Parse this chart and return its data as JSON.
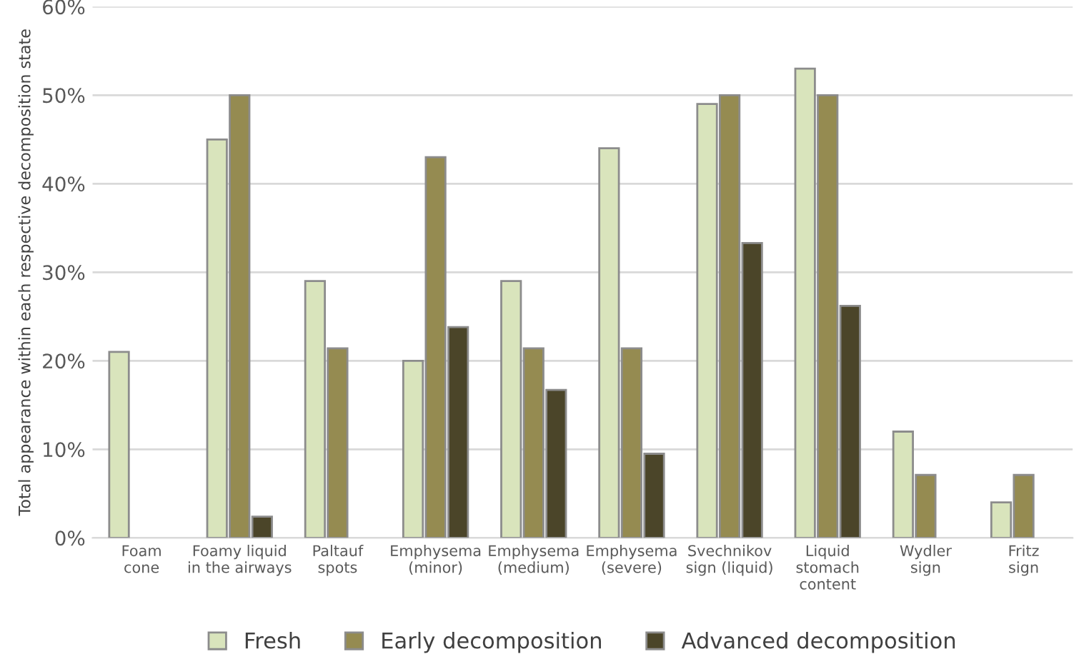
{
  "chart_data": {
    "type": "bar",
    "ylabel": "Total appearance within each respective decomposition state",
    "categories": [
      "Foam\ncone",
      "Foamy liquid\nin the airways",
      "Paltauf\nspots",
      "Emphysema\n(minor)",
      "Emphysema\n(medium)",
      "Emphysema\n(severe)",
      "Svechnikov\nsign (liquid)",
      "Liquid\nstomach\ncontent",
      "Wydler\nsign",
      "Fritz\nsign"
    ],
    "series": [
      {
        "name": "Fresh",
        "color": "#d9e4bc",
        "values": [
          21,
          45,
          29,
          20,
          29,
          44,
          49,
          53,
          12,
          4
        ]
      },
      {
        "name": "Early decomposition",
        "color": "#958b51",
        "values": [
          null,
          50,
          21.4,
          43,
          21.4,
          21.4,
          50,
          50,
          7.1,
          7.1
        ]
      },
      {
        "name": "Advanced decomposition",
        "color": "#4b4529",
        "values": [
          null,
          2.4,
          null,
          23.8,
          16.7,
          9.5,
          33.3,
          26.2,
          null,
          null
        ]
      }
    ],
    "ylim": [
      0,
      60
    ],
    "yticks": [
      {
        "value": 0,
        "label": "0%"
      },
      {
        "value": 10,
        "label": "10%"
      },
      {
        "value": 20,
        "label": "20%"
      },
      {
        "value": 30,
        "label": "30%"
      },
      {
        "value": 40,
        "label": "40%"
      },
      {
        "value": 50,
        "label": "50%"
      },
      {
        "value": 60,
        "label": "60%"
      }
    ],
    "grid": "y",
    "legend": "bottom"
  }
}
